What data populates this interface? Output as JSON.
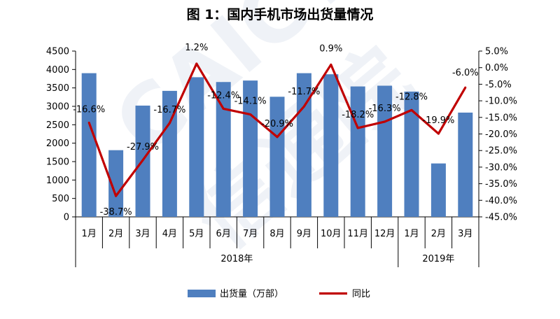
{
  "chart_data": {
    "type": "bar",
    "title": "图 1：国内手机市场出货量情况",
    "categories": [
      "1月",
      "2月",
      "3月",
      "4月",
      "5月",
      "6月",
      "7月",
      "8月",
      "9月",
      "10月",
      "11月",
      "12月",
      "1月",
      "2月",
      "3月"
    ],
    "groups": [
      {
        "label": "2018年",
        "count": 12
      },
      {
        "label": "2019年",
        "count": 3
      }
    ],
    "series": [
      {
        "name": "出货量（万部）",
        "type": "bar",
        "axis": "left",
        "values": [
          3900,
          1810,
          3020,
          3420,
          3790,
          3660,
          3700,
          3260,
          3900,
          3870,
          3540,
          3560,
          3400,
          1450,
          2830
        ]
      },
      {
        "name": "同比",
        "type": "line",
        "axis": "right",
        "values": [
          -16.6,
          -38.7,
          -27.9,
          -16.7,
          1.2,
          -12.4,
          -14.1,
          -20.9,
          -11.7,
          0.9,
          -18.2,
          -16.3,
          -12.8,
          -19.9,
          -6.0
        ],
        "labels": [
          "-16.6%",
          "-38.7%",
          "-27.9%",
          "-16.7%",
          "1.2%",
          "-12.4%",
          "-14.1%",
          "-20.9%",
          "-11.7%",
          "0.9%",
          "-18.2%",
          "-16.3%",
          "-12.8%",
          "-19.9%",
          "-6.0%"
        ]
      }
    ],
    "y_left": {
      "min": 0,
      "max": 4500,
      "ticks": [
        "0",
        "500",
        "1000",
        "1500",
        "2000",
        "2500",
        "3000",
        "3500",
        "4000",
        "4500"
      ]
    },
    "y_right": {
      "min": -45,
      "max": 5,
      "ticks": [
        "5.0%",
        "0.0%",
        "-5.0%",
        "-10.0%",
        "-15.0%",
        "-20.0%",
        "-25.0%",
        "-30.0%",
        "-35.0%",
        "-40.0%",
        "-45.0%"
      ]
    },
    "legend_position": "bottom",
    "grid": false
  },
  "colors": {
    "bar": "#4f7fbf",
    "line": "#c00000"
  },
  "watermark": "CAICT 中国信通院"
}
